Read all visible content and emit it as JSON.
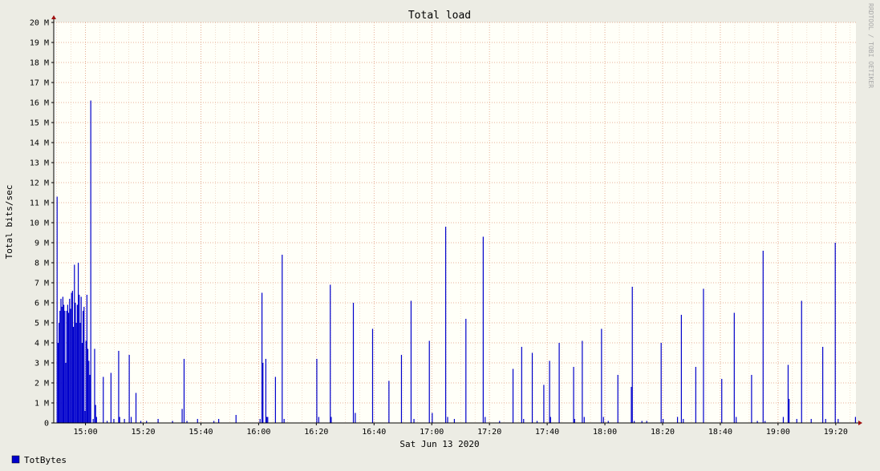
{
  "chart_data": {
    "type": "bar",
    "title": "Total load",
    "xlabel": "Sat Jun 13 2020",
    "ylabel": "Total bits/sec",
    "watermark": "RRDTOOL / TOBI OETIKER",
    "ylim": [
      0,
      20
    ],
    "y_unit": "M",
    "y_ticks": [
      "0",
      "1 M",
      "2 M",
      "3 M",
      "4 M",
      "5 M",
      "6 M",
      "7 M",
      "8 M",
      "9 M",
      "10 M",
      "11 M",
      "12 M",
      "13 M",
      "14 M",
      "15 M",
      "16 M",
      "17 M",
      "18 M",
      "19 M",
      "20 M"
    ],
    "x_ticks": [
      "15:00",
      "15:20",
      "15:40",
      "16:00",
      "16:20",
      "16:40",
      "17:00",
      "17:20",
      "17:40",
      "18:00",
      "18:20",
      "18:40",
      "19:00",
      "19:20"
    ],
    "xlim": [
      "14:49",
      "19:27"
    ],
    "grid": true,
    "legend_position": "bottom-left",
    "colors": {
      "background": "#ecece4",
      "plot": "#fffff8",
      "bar": "#0000cc",
      "minor_grid": "#e8c8b0",
      "major_grid": "#e09878",
      "axis_arrow": "#a01010"
    },
    "series": [
      {
        "name": "TotBytes",
        "color": "#0000cc",
        "points": [
          [
            "14:50:00",
            11.3
          ],
          [
            "14:50:20",
            4.0
          ],
          [
            "14:50:40",
            5.0
          ],
          [
            "14:51:00",
            5.6
          ],
          [
            "14:51:20",
            6.2
          ],
          [
            "14:51:40",
            5.8
          ],
          [
            "14:52:00",
            6.3
          ],
          [
            "14:52:20",
            5.9
          ],
          [
            "14:52:40",
            5.6
          ],
          [
            "14:53:00",
            3.0
          ],
          [
            "14:53:20",
            5.6
          ],
          [
            "14:53:40",
            5.9
          ],
          [
            "14:54:00",
            5.5
          ],
          [
            "14:54:20",
            6.2
          ],
          [
            "14:54:40",
            5.7
          ],
          [
            "14:55:00",
            6.5
          ],
          [
            "14:55:20",
            6.6
          ],
          [
            "14:55:40",
            4.8
          ],
          [
            "14:56:00",
            7.9
          ],
          [
            "14:56:20",
            6.0
          ],
          [
            "14:56:40",
            5.0
          ],
          [
            "14:57:00",
            5.9
          ],
          [
            "14:57:20",
            8.0
          ],
          [
            "14:57:40",
            6.4
          ],
          [
            "14:58:00",
            5.0
          ],
          [
            "14:58:20",
            6.3
          ],
          [
            "14:58:40",
            4.0
          ],
          [
            "14:59:00",
            5.6
          ],
          [
            "14:59:20",
            5.8
          ],
          [
            "14:59:40",
            0.6
          ],
          [
            "15:00:00",
            4.1
          ],
          [
            "15:00:20",
            6.4
          ],
          [
            "15:00:40",
            3.7
          ],
          [
            "15:01:00",
            3.1
          ],
          [
            "15:01:20",
            2.4
          ],
          [
            "15:01:40",
            16.1
          ],
          [
            "15:02:30",
            0.2
          ],
          [
            "15:03:00",
            3.7
          ],
          [
            "15:03:20",
            0.9
          ],
          [
            "15:03:40",
            0.3
          ],
          [
            "15:06:00",
            2.3
          ],
          [
            "15:07:20",
            0.1
          ],
          [
            "15:08:40",
            2.5
          ],
          [
            "15:09:40",
            0.2
          ],
          [
            "15:11:20",
            3.6
          ],
          [
            "15:11:40",
            0.3
          ],
          [
            "15:13:20",
            0.2
          ],
          [
            "15:15:00",
            3.4
          ],
          [
            "15:15:40",
            0.3
          ],
          [
            "15:17:20",
            1.5
          ],
          [
            "15:19:00",
            0.1
          ],
          [
            "15:21:00",
            0.1
          ],
          [
            "15:25:00",
            0.2
          ],
          [
            "15:30:00",
            0.1
          ],
          [
            "15:33:20",
            0.7
          ],
          [
            "15:34:00",
            3.2
          ],
          [
            "15:35:00",
            0.1
          ],
          [
            "15:38:40",
            0.2
          ],
          [
            "15:44:20",
            0.1
          ],
          [
            "15:46:00",
            0.2
          ],
          [
            "15:52:00",
            0.4
          ],
          [
            "16:00:20",
            0.2
          ],
          [
            "16:01:00",
            6.5
          ],
          [
            "16:01:20",
            3.0
          ],
          [
            "16:02:20",
            3.2
          ],
          [
            "16:02:40",
            0.3
          ],
          [
            "16:03:00",
            0.3
          ],
          [
            "16:05:40",
            2.3
          ],
          [
            "16:08:00",
            8.4
          ],
          [
            "16:08:40",
            0.2
          ],
          [
            "16:20:00",
            3.2
          ],
          [
            "16:20:40",
            0.3
          ],
          [
            "16:24:40",
            6.9
          ],
          [
            "16:25:00",
            0.3
          ],
          [
            "16:32:40",
            6.0
          ],
          [
            "16:33:20",
            0.5
          ],
          [
            "16:39:20",
            4.7
          ],
          [
            "16:45:00",
            2.1
          ],
          [
            "16:49:20",
            3.4
          ],
          [
            "16:52:40",
            6.1
          ],
          [
            "16:53:40",
            0.2
          ],
          [
            "16:59:00",
            4.1
          ],
          [
            "17:00:00",
            0.5
          ],
          [
            "17:04:40",
            9.8
          ],
          [
            "17:05:20",
            0.3
          ],
          [
            "17:07:40",
            0.2
          ],
          [
            "17:11:40",
            5.2
          ],
          [
            "17:17:40",
            9.3
          ],
          [
            "17:18:20",
            0.3
          ],
          [
            "17:23:20",
            0.1
          ],
          [
            "17:28:00",
            2.7
          ],
          [
            "17:31:00",
            3.8
          ],
          [
            "17:31:40",
            0.2
          ],
          [
            "17:34:40",
            3.5
          ],
          [
            "17:36:20",
            0.1
          ],
          [
            "17:38:40",
            1.9
          ],
          [
            "17:40:40",
            3.1
          ],
          [
            "17:41:00",
            0.3
          ],
          [
            "17:44:00",
            4.0
          ],
          [
            "17:49:00",
            2.8
          ],
          [
            "17:49:20",
            0.2
          ],
          [
            "17:52:00",
            4.1
          ],
          [
            "17:52:40",
            0.3
          ],
          [
            "17:58:40",
            4.7
          ],
          [
            "17:59:20",
            0.3
          ],
          [
            "18:01:00",
            0.1
          ],
          [
            "18:04:20",
            2.4
          ],
          [
            "18:09:00",
            1.8
          ],
          [
            "18:09:20",
            6.8
          ],
          [
            "18:10:00",
            0.1
          ],
          [
            "18:12:40",
            0.1
          ],
          [
            "18:14:20",
            0.1
          ],
          [
            "18:19:20",
            4.0
          ],
          [
            "18:20:00",
            0.2
          ],
          [
            "18:25:00",
            0.3
          ],
          [
            "18:26:20",
            5.4
          ],
          [
            "18:27:00",
            0.2
          ],
          [
            "18:31:20",
            2.8
          ],
          [
            "18:34:00",
            6.7
          ],
          [
            "18:40:20",
            2.2
          ],
          [
            "18:44:40",
            5.5
          ],
          [
            "18:45:20",
            0.3
          ],
          [
            "18:50:40",
            2.4
          ],
          [
            "18:52:40",
            0.1
          ],
          [
            "18:54:40",
            8.6
          ],
          [
            "18:55:20",
            0.1
          ],
          [
            "19:01:40",
            0.3
          ],
          [
            "19:03:20",
            2.9
          ],
          [
            "19:03:40",
            1.2
          ],
          [
            "19:06:20",
            0.2
          ],
          [
            "19:08:00",
            6.1
          ],
          [
            "19:11:20",
            0.2
          ],
          [
            "19:15:20",
            3.8
          ],
          [
            "19:16:20",
            0.2
          ],
          [
            "19:19:40",
            9.0
          ],
          [
            "19:20:40",
            0.2
          ],
          [
            "19:26:40",
            0.3
          ]
        ]
      }
    ]
  }
}
